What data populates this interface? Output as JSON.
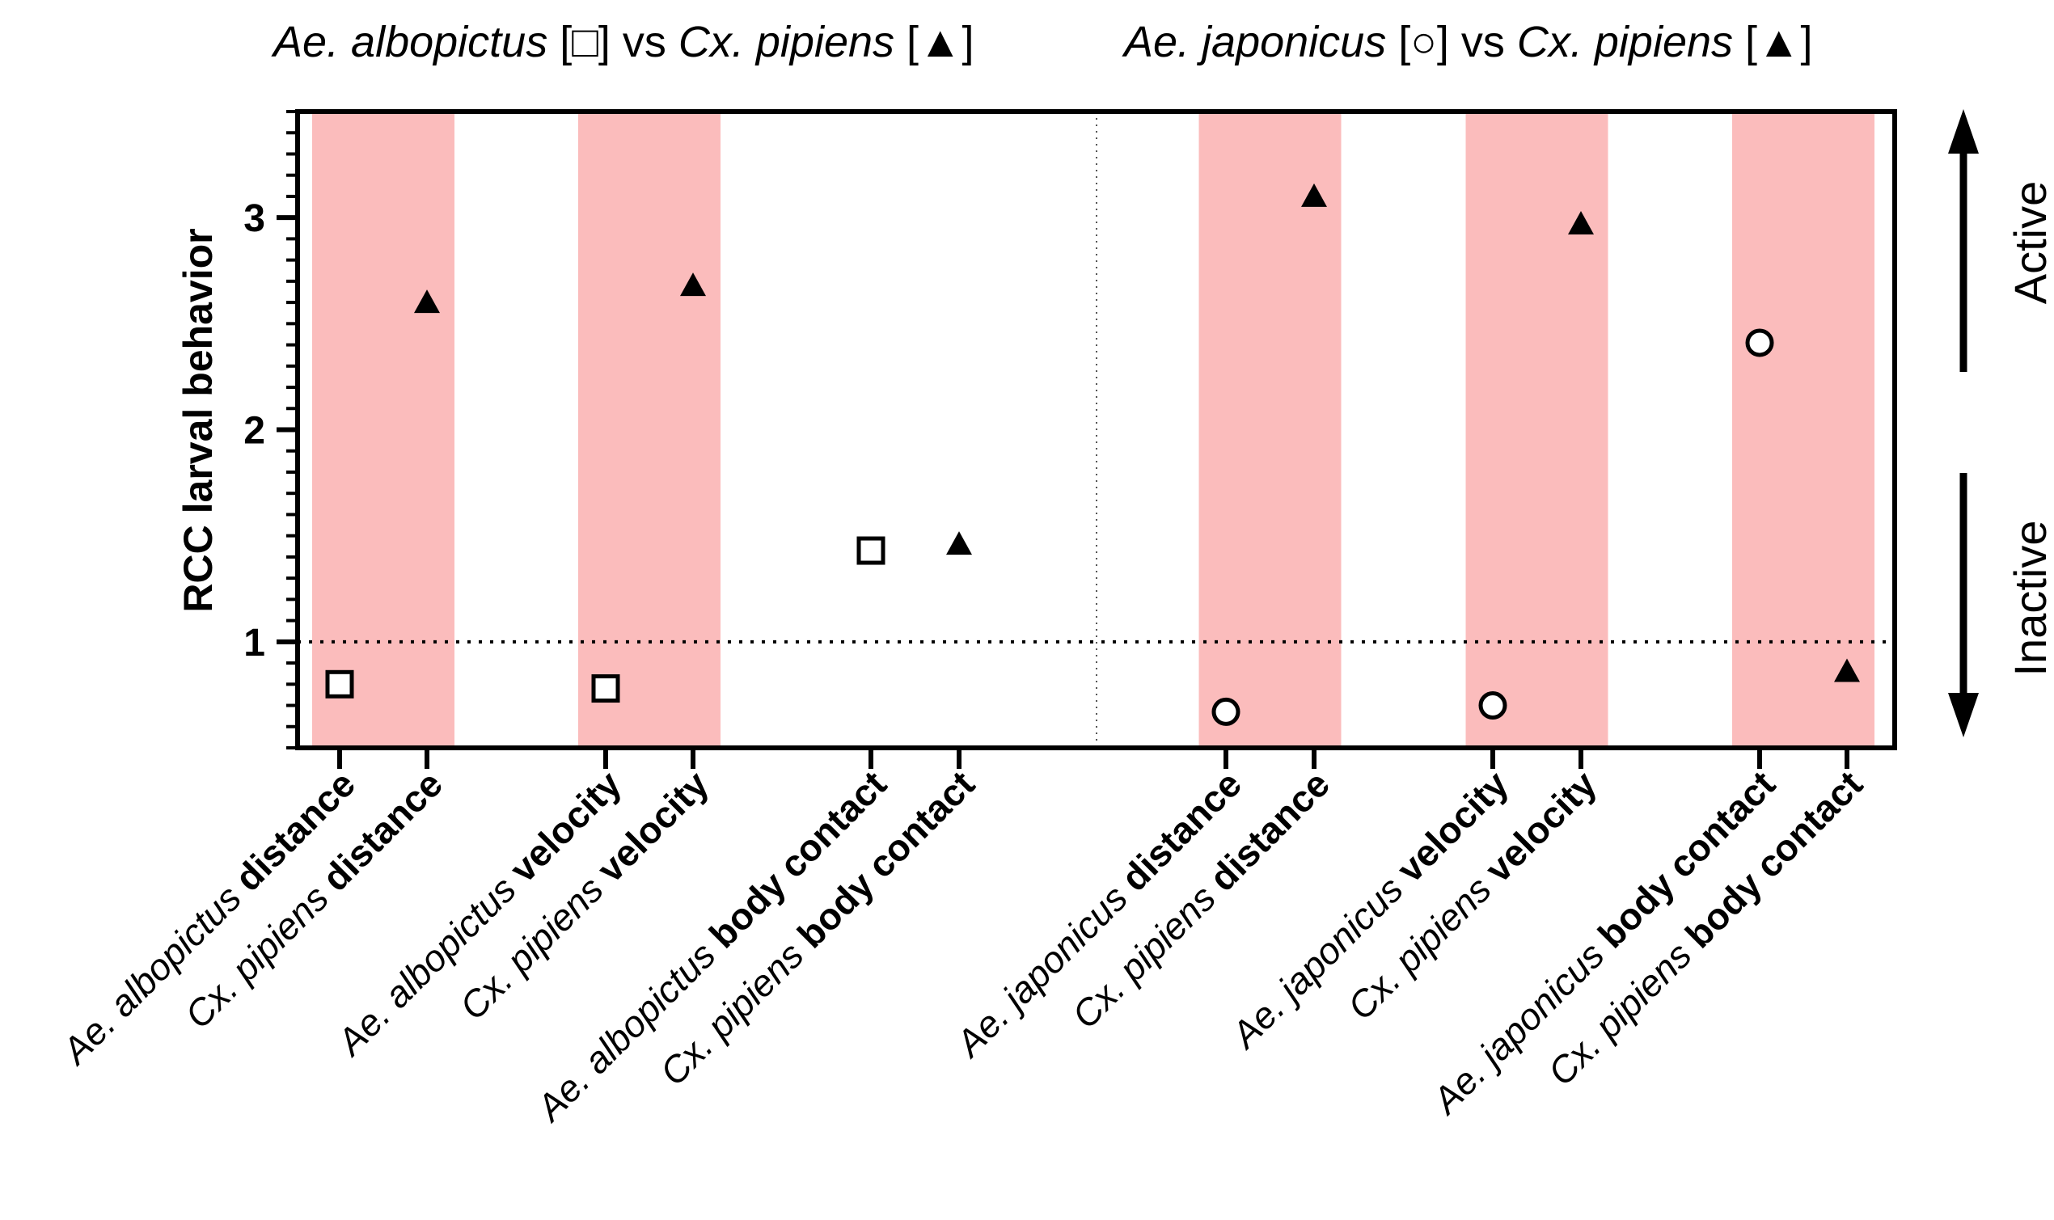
{
  "chart_data": {
    "type": "scatter",
    "title_left": {
      "species_a": "Ae. albopictus",
      "marker_a": "□",
      "vs": "vs",
      "species_b": "Cx. pipiens",
      "marker_b": "▲"
    },
    "title_right": {
      "species_a": "Ae. japonicus",
      "marker_a": "○",
      "vs": "vs",
      "species_b": "Cx. pipiens",
      "marker_b": "▲"
    },
    "ylabel": "RCC larval behavior",
    "ylim": [
      0.5,
      3.5
    ],
    "yticks": [
      1,
      2,
      3
    ],
    "reference_line_y": 1,
    "side_labels": {
      "up": "Active",
      "down": "Inactive"
    },
    "points": [
      {
        "species": "Ae. albopictus",
        "metric": "distance",
        "marker": "square",
        "value": 0.8,
        "shaded": true
      },
      {
        "species": "Cx. pipiens",
        "metric": "distance",
        "marker": "triangle",
        "value": 2.6,
        "shaded": true
      },
      {
        "species": "Ae. albopictus",
        "metric": "velocity",
        "marker": "square",
        "value": 0.78,
        "shaded": true
      },
      {
        "species": "Cx. pipiens",
        "metric": "velocity",
        "marker": "triangle",
        "value": 2.68,
        "shaded": true
      },
      {
        "species": "Ae. albopictus",
        "metric": "body contact",
        "marker": "square",
        "value": 1.43,
        "shaded": false
      },
      {
        "species": "Cx. pipiens",
        "metric": "body contact",
        "marker": "triangle",
        "value": 1.46,
        "shaded": false
      },
      {
        "species": "Ae. japonicus",
        "metric": "distance",
        "marker": "circle",
        "value": 0.67,
        "shaded": true
      },
      {
        "species": "Cx. pipiens",
        "metric": "distance",
        "marker": "triangle",
        "value": 3.1,
        "shaded": true
      },
      {
        "species": "Ae. japonicus",
        "metric": "velocity",
        "marker": "circle",
        "value": 0.7,
        "shaded": true
      },
      {
        "species": "Cx. pipiens",
        "metric": "velocity",
        "marker": "triangle",
        "value": 2.97,
        "shaded": true
      },
      {
        "species": "Ae. japonicus",
        "metric": "body contact",
        "marker": "circle",
        "value": 2.41,
        "shaded": true
      },
      {
        "species": "Cx. pipiens",
        "metric": "body contact",
        "marker": "triangle",
        "value": 0.86,
        "shaded": true
      }
    ]
  },
  "colors": {
    "shade": "#fbbcbc",
    "ink": "#000000",
    "background": "#ffffff"
  }
}
